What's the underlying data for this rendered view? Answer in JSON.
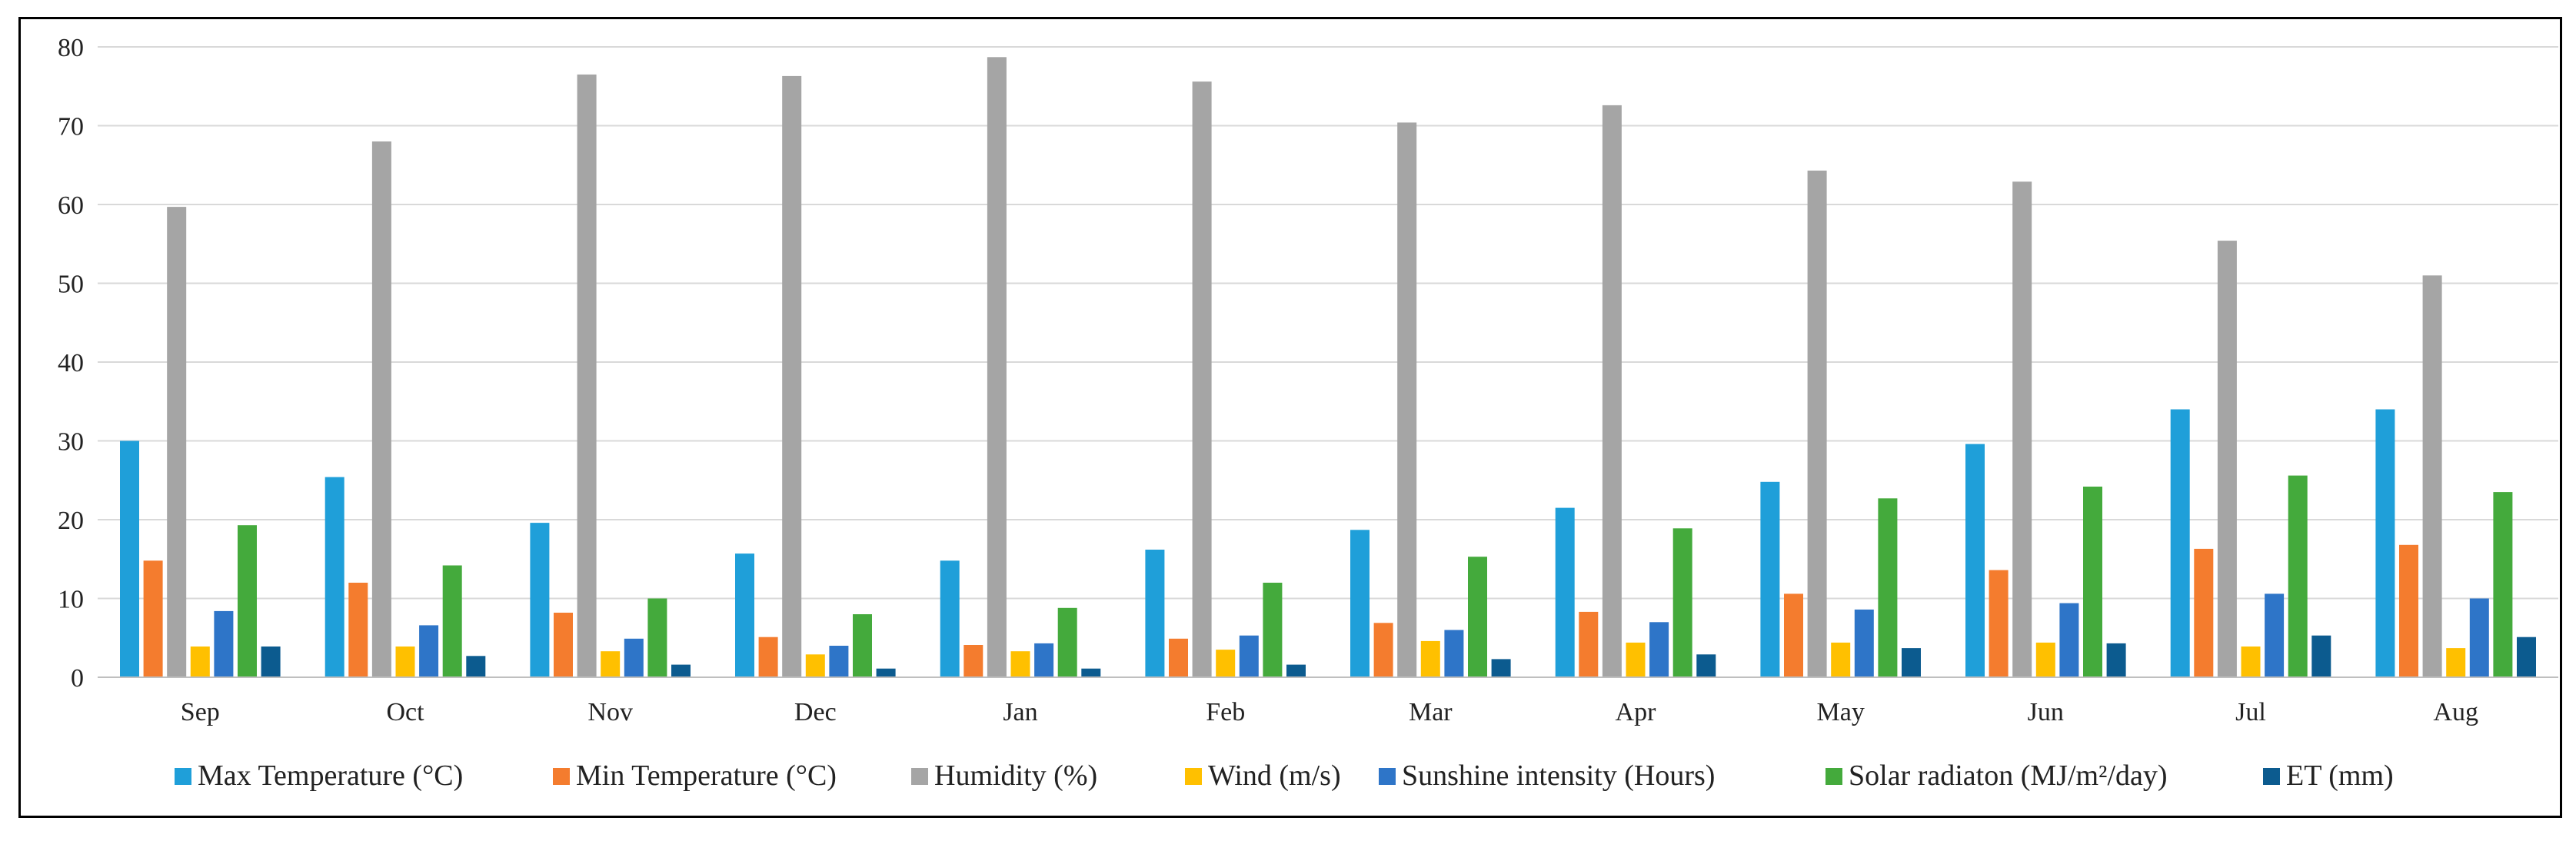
{
  "chart_data": {
    "type": "bar",
    "title": "",
    "xlabel": "",
    "ylabel": "",
    "ylim": [
      0,
      80
    ],
    "yticks": [
      0,
      10,
      20,
      30,
      40,
      50,
      60,
      70,
      80
    ],
    "grid": true,
    "legend_position": "bottom",
    "categories": [
      "Sep",
      "Oct",
      "Nov",
      "Dec",
      "Jan",
      "Feb",
      "Mar",
      "Apr",
      "May",
      "Jun",
      "Jul",
      "Aug"
    ],
    "series": [
      {
        "name": "Max Temperature (°C)",
        "color": "#1f9fd9",
        "values": [
          30.0,
          25.4,
          19.6,
          15.7,
          14.8,
          16.2,
          18.7,
          21.5,
          24.8,
          29.6,
          34.0,
          34.0
        ]
      },
      {
        "name": "Min Temperature (°C)",
        "color": "#f47c2e",
        "values": [
          14.8,
          12.0,
          8.2,
          5.1,
          4.1,
          4.9,
          6.9,
          8.3,
          10.6,
          13.6,
          16.3,
          16.8
        ]
      },
      {
        "name": "Humidity (%)",
        "color": "#a5a5a5",
        "values": [
          59.7,
          68.0,
          76.5,
          76.3,
          78.7,
          75.6,
          70.4,
          72.6,
          64.3,
          62.9,
          55.4,
          51.0
        ]
      },
      {
        "name": "Wind (m/s)",
        "color": "#ffc000",
        "values": [
          3.9,
          3.9,
          3.3,
          2.9,
          3.3,
          3.5,
          4.6,
          4.4,
          4.4,
          4.4,
          3.9,
          3.7
        ]
      },
      {
        "name": "Sunshine intensity (Hours)",
        "color": "#2e75c8",
        "values": [
          8.4,
          6.6,
          4.9,
          4.0,
          4.3,
          5.3,
          6.0,
          7.0,
          8.6,
          9.4,
          10.6,
          10.0
        ]
      },
      {
        "name": "Solar radiaton (MJ/m²/day)",
        "color": "#44aa3c",
        "values": [
          19.3,
          14.2,
          10.0,
          8.0,
          8.8,
          12.0,
          15.3,
          18.9,
          22.7,
          24.2,
          25.6,
          23.5
        ]
      },
      {
        "name": "ET (mm)",
        "color": "#0c5b8f",
        "values": [
          3.9,
          2.7,
          1.6,
          1.1,
          1.1,
          1.6,
          2.3,
          2.9,
          3.7,
          4.3,
          5.3,
          5.1
        ]
      }
    ]
  }
}
